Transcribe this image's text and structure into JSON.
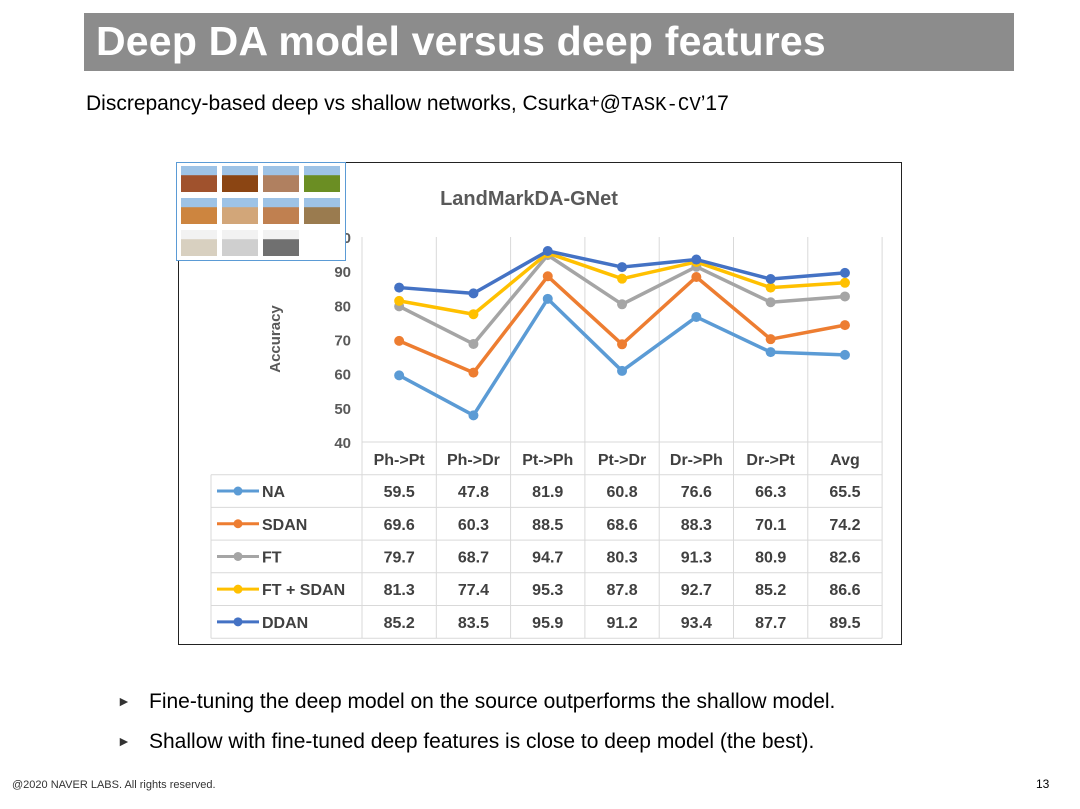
{
  "slide": {
    "title": "Deep DA model versus deep features",
    "subtitle_main": "Discrepancy-based deep vs shallow networks, Csurka",
    "subtitle_sup": "+",
    "subtitle_at": "@",
    "subtitle_venue": "TASK-CV",
    "subtitle_year": "’17",
    "bullets": [
      "Fine-tuning the deep model on the source outperforms the shallow model.",
      "Shallow with fine-tuned deep features is close to deep model (the best)."
    ],
    "footer": "@2020 NAVER LABS. All rights reserved.",
    "page_number": "13"
  },
  "chart_data": {
    "type": "line",
    "title": "LandMarkDA-GNet",
    "ylabel": "Accuracy",
    "xlabel": "",
    "ylim": [
      40,
      100
    ],
    "yticks": [
      40,
      50,
      60,
      70,
      80,
      90,
      100
    ],
    "grid": true,
    "legend": "table-left",
    "categories": [
      "Ph->Pt",
      "Ph->Dr",
      "Pt->Ph",
      "Pt->Dr",
      "Dr->Ph",
      "Dr->Pt",
      "Avg"
    ],
    "series": [
      {
        "name": "NA",
        "color": "#5b9bd5",
        "values": [
          59.5,
          47.8,
          81.9,
          60.8,
          76.6,
          66.3,
          65.5
        ]
      },
      {
        "name": "SDAN",
        "color": "#ed7d31",
        "values": [
          69.6,
          60.3,
          88.5,
          68.6,
          88.3,
          70.1,
          74.2
        ]
      },
      {
        "name": "FT",
        "color": "#a5a5a5",
        "values": [
          79.7,
          68.7,
          94.7,
          80.3,
          91.3,
          80.9,
          82.6
        ]
      },
      {
        "name": "FT  + SDAN",
        "color": "#ffc000",
        "values": [
          81.3,
          77.4,
          95.3,
          87.8,
          92.7,
          85.2,
          86.6
        ]
      },
      {
        "name": "DDAN",
        "color": "#4472c4",
        "values": [
          85.2,
          83.5,
          95.9,
          91.2,
          93.4,
          87.7,
          89.5
        ]
      }
    ]
  },
  "thumbnails": {
    "colors": [
      "#a0522d",
      "#8b4513",
      "#b08060",
      "#6b8e23",
      "#cd853f",
      "#d2a679",
      "#c08050",
      "#9a7b4f",
      "#d8d0c0",
      "#cfcfcf",
      "#707070",
      "#e0e0e0"
    ]
  }
}
